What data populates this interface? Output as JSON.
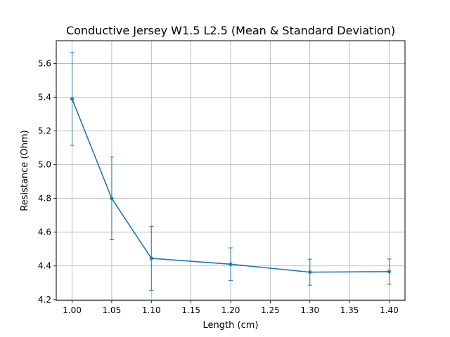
{
  "chart_data": {
    "type": "line",
    "title": "Conductive Jersey W1.5 L2.5 (Mean & Standard Deviation)",
    "xlabel": "Length (cm)",
    "ylabel": "Resistance (Ohm)",
    "xlim": [
      0.98,
      1.42
    ],
    "ylim": [
      4.195,
      5.735
    ],
    "xticks": [
      1.0,
      1.05,
      1.1,
      1.15,
      1.2,
      1.25,
      1.3,
      1.35,
      1.4
    ],
    "xtick_labels": [
      "1.00",
      "1.05",
      "1.10",
      "1.15",
      "1.20",
      "1.25",
      "1.30",
      "1.35",
      "1.40"
    ],
    "yticks": [
      4.2,
      4.4,
      4.6,
      4.8,
      5.0,
      5.2,
      5.4,
      5.6
    ],
    "ytick_labels": [
      "4.2",
      "4.4",
      "4.6",
      "4.8",
      "5.0",
      "5.2",
      "5.4",
      "5.6"
    ],
    "grid": true,
    "series": [
      {
        "color": "#1f77b4",
        "x": [
          1.0,
          1.05,
          1.1,
          1.2,
          1.3,
          1.4
        ],
        "y": [
          5.39,
          4.8,
          4.445,
          4.41,
          4.363,
          4.366
        ],
        "yerr": [
          0.275,
          0.245,
          0.19,
          0.097,
          0.077,
          0.075
        ]
      }
    ]
  }
}
